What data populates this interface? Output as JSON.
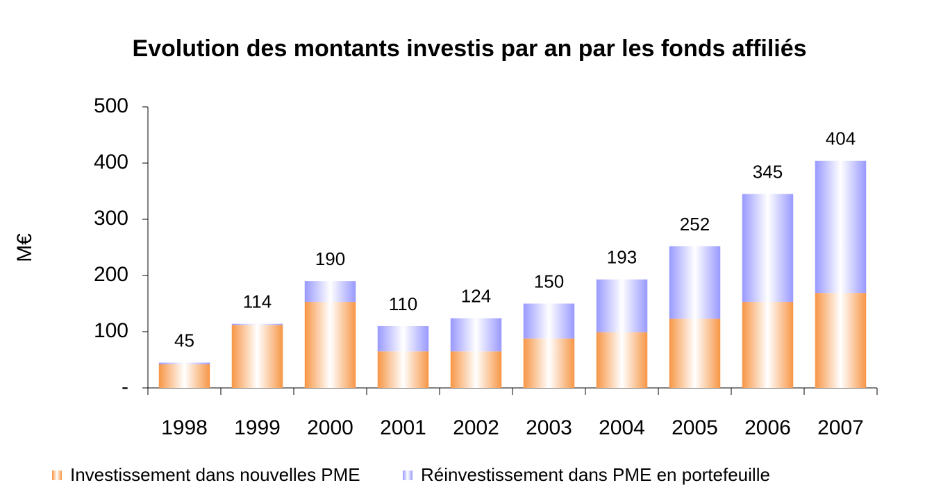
{
  "chart_data": {
    "type": "stacked_bar",
    "title": "Evolution des montants investis par an par les fonds affiliés",
    "y_label": "M€",
    "categories": [
      "1998",
      "1999",
      "2000",
      "2001",
      "2002",
      "2003",
      "2004",
      "2005",
      "2006",
      "2007"
    ],
    "series": [
      {
        "name": "Investissement dans nouvelles PME",
        "color": "#f79646",
        "values": [
          42,
          112,
          153,
          65,
          65,
          88,
          99,
          123,
          153,
          169
        ]
      },
      {
        "name": "Réinvestissement dans PME en portefeuille",
        "color": "#9999ff",
        "values": [
          3,
          2,
          37,
          45,
          59,
          62,
          94,
          129,
          192,
          235
        ]
      }
    ],
    "totals": [
      45,
      114,
      190,
      110,
      124,
      150,
      193,
      252,
      345,
      404
    ],
    "ylim": [
      0,
      500
    ],
    "yticks": [
      {
        "value": 0,
        "label": "-"
      },
      100,
      200,
      300,
      400,
      500
    ],
    "grid": false
  }
}
